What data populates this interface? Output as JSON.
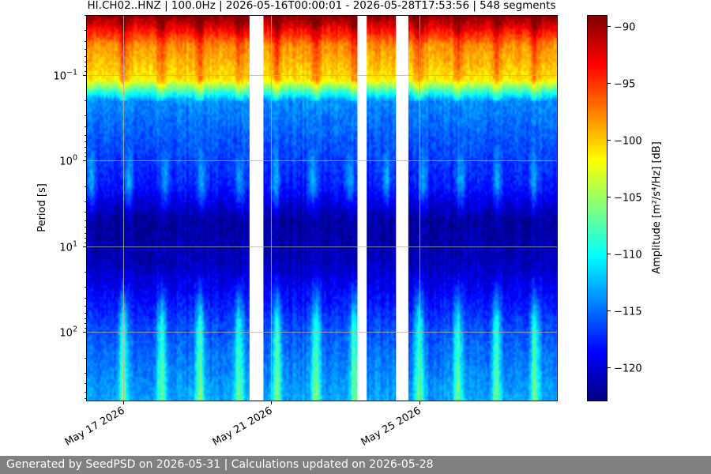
{
  "chart_data": {
    "type": "heatmap",
    "title": "HI.CH02..HNZ | 100.0Hz | 2026-05-16T00:00:01 - 2026-05-28T17:53:56 | 548 segments",
    "xlabel": "",
    "ylabel": "Period [s]",
    "colorbar_label": "Amplitude [m²/s⁴/Hz] [dB]",
    "colormap": "jet",
    "x_range": [
      "2026-05-16T00:00:01",
      "2026-05-28T17:53:56"
    ],
    "x_ticks": [
      {
        "date": "2026-05-17",
        "label": "May 17 2026"
      },
      {
        "date": "2026-05-21",
        "label": "May 21 2026"
      },
      {
        "date": "2026-05-25",
        "label": "May 25 2026"
      }
    ],
    "y_scale": "log",
    "y_axis_inverted": true,
    "y_range": [
      0.02,
      650
    ],
    "y_ticks": [
      {
        "value": 0.1,
        "base": "10",
        "exp": "−1"
      },
      {
        "value": 1,
        "base": "10",
        "exp": "0"
      },
      {
        "value": 10,
        "base": "10",
        "exp": "1"
      },
      {
        "value": 100,
        "base": "10",
        "exp": "2"
      }
    ],
    "color_range": [
      -123,
      -89
    ],
    "colorbar_ticks": [
      -90,
      -95,
      -100,
      -105,
      -110,
      -115,
      -120
    ],
    "grid": true,
    "data_gaps": [
      [
        "2026-05-20T10:00:00",
        "2026-05-20T19:00:00"
      ],
      [
        "2026-05-23T08:00:00",
        "2026-05-23T14:00:00"
      ],
      [
        "2026-05-24T09:00:00",
        "2026-05-24T17:00:00"
      ]
    ],
    "energy_bursts": [
      "2026-05-17T00:00:00",
      "2026-05-18T01:00:00",
      "2026-05-19T02:00:00",
      "2026-05-20T03:00:00",
      "2026-05-21T04:00:00",
      "2026-05-22T05:00:00",
      "2026-05-23T06:00:00",
      "2026-05-25T00:00:00",
      "2026-05-26T01:00:00",
      "2026-05-27T02:00:00",
      "2026-05-28T03:00:00"
    ]
  },
  "footer": {
    "text": "Generated by SeedPSD on 2026-05-31 | Calculations updated on 2026-05-28"
  }
}
